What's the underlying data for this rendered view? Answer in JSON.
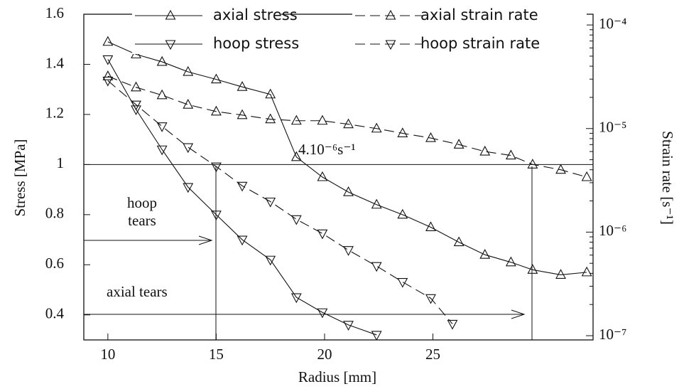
{
  "chart_data": {
    "type": "line",
    "xlabel": "Radius [mm]",
    "ylabel": "Stress [MPa]",
    "y2label": "Strain rate [s⁻¹]",
    "xlim": [
      8.89,
      32.39
    ],
    "xticks": [
      10,
      15,
      20,
      25
    ],
    "ylim": [
      0.3,
      1.6
    ],
    "yticks": [
      0.4,
      0.6,
      0.8,
      1,
      1.2,
      1.4,
      1.6
    ],
    "y2lim": [
      9.1e-08,
      0.000127
    ],
    "y2scale": "log",
    "y2ticks": [
      {
        "value": 1e-07,
        "label": "10⁻⁷"
      },
      {
        "value": 1e-06,
        "label": "10⁻⁶"
      },
      {
        "value": 1e-05,
        "label": "10⁻⁵"
      },
      {
        "value": 0.0001,
        "label": "10⁻⁴"
      }
    ],
    "annotations": [
      "hoop",
      "tears",
      "axial tears",
      "4.10⁻⁶s⁻¹"
    ],
    "series": [
      {
        "name": "axial stress",
        "color": "#000000",
        "marker": "open-triangle",
        "dashed": false,
        "x": [
          10.0,
          11.3,
          12.5,
          13.7,
          15.0,
          16.2,
          17.5,
          18.7,
          19.9,
          21.1,
          22.4,
          23.6,
          24.9,
          26.2,
          27.4,
          28.6,
          29.6,
          30.9,
          32.1
        ],
        "values": [
          1.49,
          1.44,
          1.41,
          1.37,
          1.34,
          1.31,
          1.28,
          1.03,
          0.95,
          0.89,
          0.84,
          0.8,
          0.75,
          0.69,
          0.64,
          0.61,
          0.58,
          0.56,
          0.57
        ]
      },
      {
        "name": "axial strain rate",
        "color": "#000000",
        "marker": "open-triangle",
        "dashed": true,
        "axis": "y2",
        "x": [
          10.0,
          11.3,
          12.5,
          13.7,
          15.0,
          16.2,
          17.5,
          18.7,
          19.9,
          21.1,
          22.4,
          23.6,
          24.9,
          26.2,
          27.4,
          28.6,
          29.6,
          30.9,
          32.1
        ],
        "values": [
          3.2e-05,
          2.5e-05,
          2.1e-05,
          1.7e-05,
          1.46e-05,
          1.35e-05,
          1.23e-05,
          1.19e-05,
          1.19e-05,
          1.1e-05,
          1e-05,
          9e-06,
          8.1e-06,
          7e-06,
          6e-06,
          5.5e-06,
          4.5e-06,
          4e-06,
          3.4e-06
        ]
      },
      {
        "name": "hoop stress",
        "color": "#000000",
        "marker": "filled-triangle-down",
        "dashed": false,
        "x": [
          10.0,
          11.3,
          12.5,
          13.7,
          15.0,
          16.2,
          17.5,
          18.7,
          19.9,
          21.1,
          22.4
        ],
        "values": [
          1.42,
          1.22,
          1.06,
          0.91,
          0.8,
          0.7,
          0.62,
          0.47,
          0.41,
          0.36,
          0.32
        ]
      },
      {
        "name": "hoop strain rate",
        "color": "#000000",
        "marker": "filled-triangle-down",
        "dashed": true,
        "axis": "y2",
        "x": [
          10.0,
          11.3,
          12.5,
          13.7,
          15.0,
          16.2,
          17.5,
          18.7,
          19.9,
          21.1,
          22.4,
          23.6,
          24.9,
          25.9
        ],
        "values": [
          2.9e-05,
          1.7e-05,
          1.05e-05,
          6.6e-06,
          4.3e-06,
          2.8e-06,
          1.97e-06,
          1.33e-06,
          9.7e-07,
          6.7e-07,
          4.7e-07,
          3.3e-07,
          2.3e-07,
          1.3e-07
        ]
      }
    ]
  }
}
